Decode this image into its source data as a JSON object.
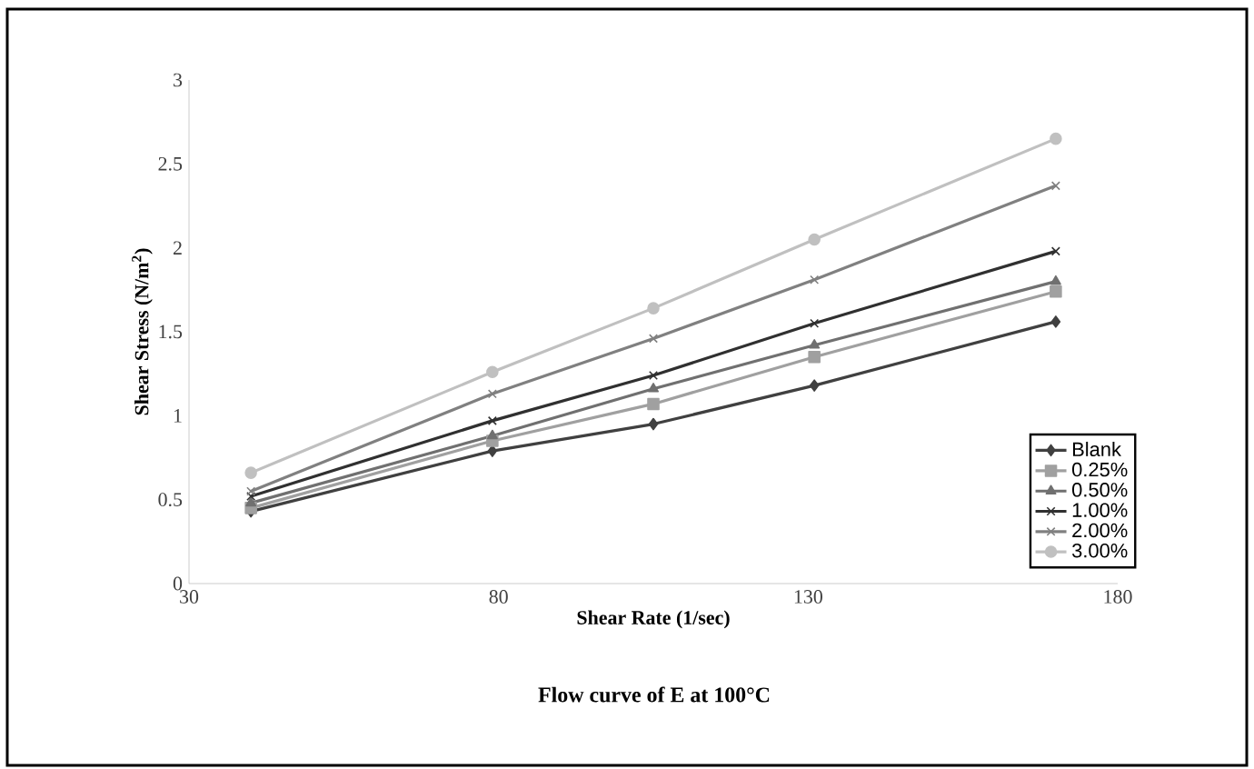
{
  "chart_data": {
    "type": "line",
    "title": "Flow curve of E at 100°C",
    "xlabel": "Shear Rate (1/sec)",
    "ylabel": "Shear Stress (N/m$^{2}$)",
    "x": [
      40,
      79,
      105,
      131,
      170
    ],
    "series": [
      {
        "name": "Blank",
        "color": "#404040",
        "marker": "diamond",
        "values": [
          0.43,
          0.79,
          0.95,
          1.18,
          1.56
        ]
      },
      {
        "name": "0.25%",
        "color": "#a0a0a0",
        "marker": "square",
        "values": [
          0.45,
          0.85,
          1.07,
          1.35,
          1.74
        ]
      },
      {
        "name": "0.50%",
        "color": "#707070",
        "marker": "triangle",
        "values": [
          0.48,
          0.88,
          1.16,
          1.42,
          1.8
        ]
      },
      {
        "name": "1.00%",
        "color": "#303030",
        "marker": "cross",
        "values": [
          0.52,
          0.97,
          1.24,
          1.55,
          1.98
        ]
      },
      {
        "name": "2.00%",
        "color": "#808080",
        "marker": "cross",
        "values": [
          0.55,
          1.13,
          1.46,
          1.81,
          2.37
        ]
      },
      {
        "name": "3.00%",
        "color": "#c0c0c0",
        "marker": "circle",
        "values": [
          0.66,
          1.26,
          1.64,
          2.05,
          2.65
        ]
      }
    ],
    "xlim": [
      30,
      180
    ],
    "xticks": [
      30,
      80,
      130,
      180
    ],
    "ylim": [
      0,
      3
    ],
    "yticks": [
      0,
      0.5,
      1,
      1.5,
      2,
      2.5,
      3
    ],
    "grid": false,
    "legend": "bottom right"
  }
}
